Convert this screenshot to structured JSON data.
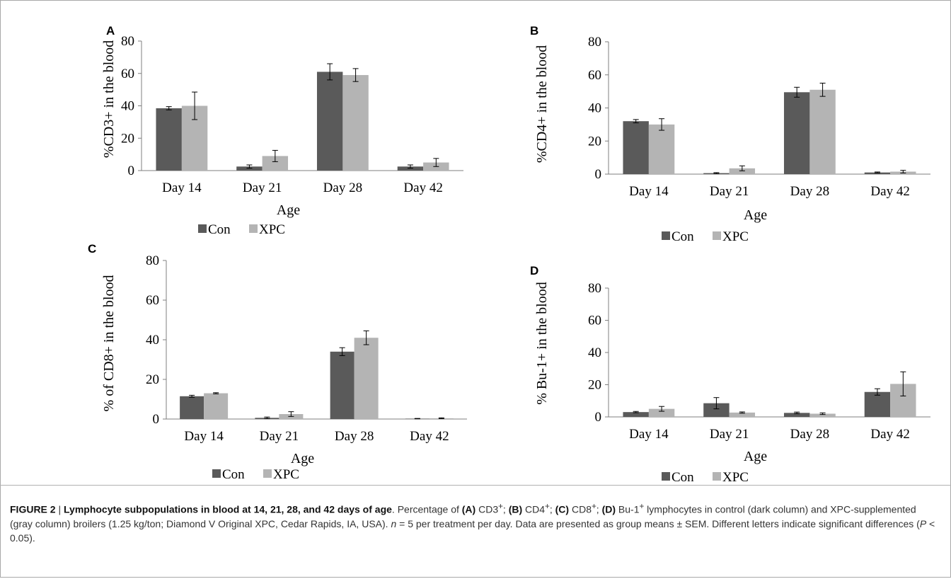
{
  "colors": {
    "con": "#5a5a5a",
    "xpc": "#b4b4b4",
    "axis": "#7f7f7f"
  },
  "chart_data": [
    {
      "panel": "A",
      "type": "bar",
      "ylabel": "%CD3+ in the blood",
      "xlabel": "Age",
      "categories": [
        "Day 14",
        "Day 21",
        "Day 28",
        "Day 42"
      ],
      "ylim": [
        0,
        80
      ],
      "yticks": [
        0,
        20,
        40,
        60,
        80
      ],
      "series": [
        {
          "name": "Con",
          "values": [
            38.5,
            2.5,
            61,
            2.5
          ],
          "errors": [
            1,
            1,
            5,
            1
          ]
        },
        {
          "name": "XPC",
          "values": [
            40,
            9,
            59,
            5
          ],
          "errors": [
            8.5,
            3.5,
            4,
            2.5
          ]
        }
      ]
    },
    {
      "panel": "B",
      "type": "bar",
      "ylabel": "%CD4+ in the blood",
      "xlabel": "Age",
      "categories": [
        "Day 14",
        "Day 21",
        "Day 28",
        "Day 42"
      ],
      "ylim": [
        0,
        80
      ],
      "yticks": [
        0,
        20,
        40,
        60,
        80
      ],
      "series": [
        {
          "name": "Con",
          "values": [
            32,
            0.6,
            49.5,
            1
          ],
          "errors": [
            1,
            0.3,
            3,
            0.3
          ]
        },
        {
          "name": "XPC",
          "values": [
            30,
            3.5,
            51,
            1.5
          ],
          "errors": [
            3.5,
            1.5,
            4,
            0.8
          ]
        }
      ]
    },
    {
      "panel": "C",
      "type": "bar",
      "ylabel": "% of CD8+ in the blood",
      "xlabel": "Age",
      "categories": [
        "Day 14",
        "Day 21",
        "Day 28",
        "Day 42"
      ],
      "ylim": [
        0,
        80
      ],
      "yticks": [
        0,
        20,
        40,
        60,
        80
      ],
      "series": [
        {
          "name": "Con",
          "values": [
            11.5,
            0.6,
            34,
            0.2
          ],
          "errors": [
            0.5,
            0.4,
            2,
            0.1
          ]
        },
        {
          "name": "XPC",
          "values": [
            13,
            2.5,
            41,
            0.4
          ],
          "errors": [
            0.3,
            1.2,
            3.5,
            0.2
          ]
        }
      ]
    },
    {
      "panel": "D",
      "type": "bar",
      "ylabel": "% Bu-1+ in the blood",
      "xlabel": "Age",
      "categories": [
        "Day 14",
        "Day 21",
        "Day 28",
        "Day 42"
      ],
      "ylim": [
        0,
        80
      ],
      "yticks": [
        0,
        20,
        40,
        60,
        80
      ],
      "series": [
        {
          "name": "Con",
          "values": [
            3,
            8.5,
            2.5,
            15.5
          ],
          "errors": [
            0.4,
            3.5,
            0.5,
            2
          ]
        },
        {
          "name": "XPC",
          "values": [
            5,
            2.7,
            2,
            20.5
          ],
          "errors": [
            1.5,
            0.4,
            0.5,
            7.5
          ]
        }
      ]
    }
  ],
  "caption": {
    "label": "FIGURE 2",
    "separator": " | ",
    "title": "Lymphocyte subpopulations in blood at 14, 21, 28, and 42 days of age",
    "line1_a": ". Percentage of ",
    "A": "(A)",
    "t_a": " CD3",
    "B": "(B)",
    "t_b": " CD4",
    "C": "(C)",
    "t_c": " CD8",
    "D": "(D)",
    "t_d": " Bu-1",
    "sup": "+",
    "semi": "; ",
    "t_end": " lymphocytes in control (dark column) and XPC-supplemented (gray column) broilers (1.25 kg/ton; Diamond V Original XPC, Cedar Rapids, IA, USA). ",
    "n_italic": "n",
    "n_rest": " = 5 per treatment per day. Data are presented as group means ± SEM. Different letters indicate significant differences (",
    "p_italic": "P",
    "p_rest": " < 0.05)."
  }
}
